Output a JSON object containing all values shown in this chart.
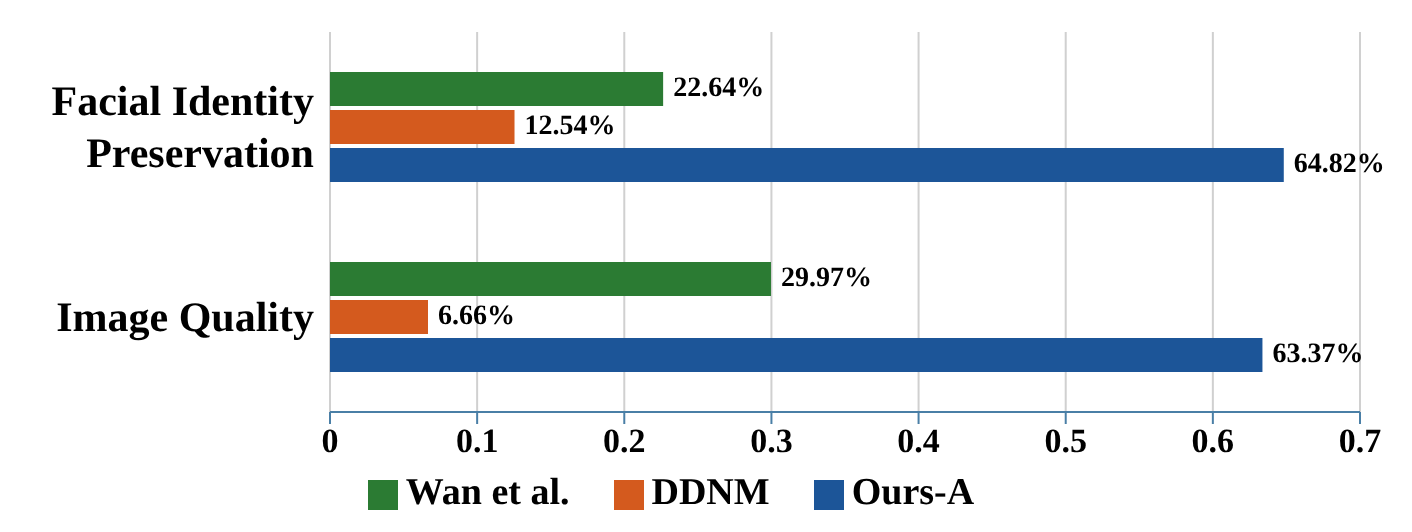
{
  "chart_data": {
    "type": "bar",
    "orientation": "horizontal",
    "categories": [
      "Facial Identity Preservation",
      "Image Quality"
    ],
    "series": [
      {
        "name": "Wan et al.",
        "color": "#2b7b33",
        "values": [
          0.2264,
          0.2997
        ],
        "value_labels": [
          "22.64%",
          "29.97%"
        ]
      },
      {
        "name": "DDNM",
        "color": "#d45a1e",
        "values": [
          0.1254,
          0.0666
        ],
        "value_labels": [
          "12.54%",
          "6.66%"
        ]
      },
      {
        "name": "Ours-A",
        "color": "#1c5598",
        "values": [
          0.6482,
          0.6337
        ],
        "value_labels": [
          "64.82%",
          "63.37%"
        ]
      }
    ],
    "xlim": [
      0,
      0.7
    ],
    "xticks": [
      0,
      0.1,
      0.2,
      0.3,
      0.4,
      0.5,
      0.6,
      0.7
    ],
    "grid": "x",
    "legend": "bottom"
  }
}
